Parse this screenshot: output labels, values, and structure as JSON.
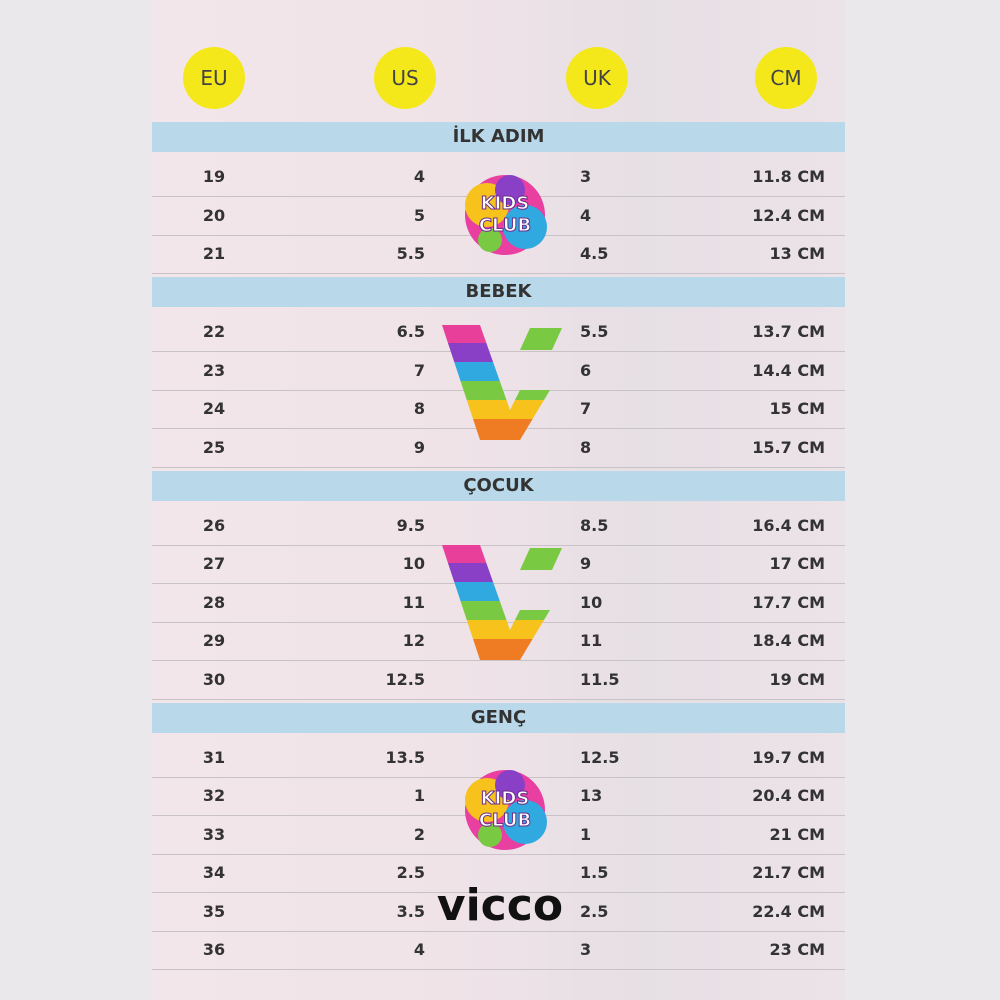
{
  "header": {
    "columns": [
      "EU",
      "US",
      "UK",
      "CM"
    ]
  },
  "sections": [
    {
      "title": "İLK ADIM",
      "rows": [
        [
          "19",
          "4",
          "3",
          "11.8 CM"
        ],
        [
          "20",
          "5",
          "4",
          "12.4 CM"
        ],
        [
          "21",
          "5.5",
          "4.5",
          "13 CM"
        ]
      ]
    },
    {
      "title": "BEBEK",
      "rows": [
        [
          "22",
          "6.5",
          "5.5",
          "13.7 CM"
        ],
        [
          "23",
          "7",
          "6",
          "14.4 CM"
        ],
        [
          "24",
          "8",
          "7",
          "15 CM"
        ],
        [
          "25",
          "9",
          "8",
          "15.7 CM"
        ]
      ]
    },
    {
      "title": "ÇOCUK",
      "rows": [
        [
          "26",
          "9.5",
          "8.5",
          "16.4 CM"
        ],
        [
          "27",
          "10",
          "9",
          "17 CM"
        ],
        [
          "28",
          "11",
          "10",
          "17.7 CM"
        ],
        [
          "29",
          "12",
          "11",
          "18.4 CM"
        ],
        [
          "30",
          "12.5",
          "11.5",
          "19 CM"
        ]
      ]
    },
    {
      "title": "GENÇ",
      "rows": [
        [
          "31",
          "13.5",
          "12.5",
          "19.7 CM"
        ],
        [
          "32",
          "1",
          "13",
          "20.4 CM"
        ],
        [
          "33",
          "2",
          "1",
          "21 CM"
        ],
        [
          "34",
          "2.5",
          "1.5",
          "21.7 CM"
        ],
        [
          "35",
          "3.5",
          "2.5",
          "22.4 CM"
        ],
        [
          "36",
          "4",
          "3",
          "23 CM"
        ]
      ]
    }
  ],
  "logos": {
    "kids_club": [
      "KIDS",
      "CLUB"
    ],
    "brand": "vicco"
  }
}
